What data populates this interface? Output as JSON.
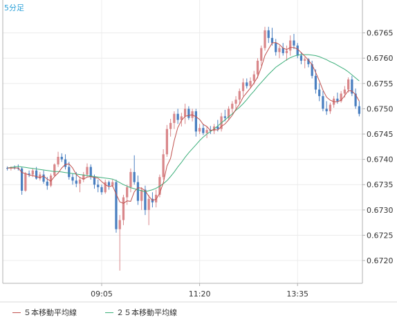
{
  "period_label": "5分足",
  "legend": {
    "ma5_label": "５本移動平均線",
    "ma25_label": "２５本移動平均線"
  },
  "colors": {
    "up_candle": "#d9878a",
    "down_candle": "#4a7fc0",
    "ma5": "#c0504d",
    "ma25": "#3aae79",
    "grid": "#ececec",
    "border": "#b0b0b0",
    "label": "#2aa0d8"
  },
  "chart_data": {
    "type": "candlestick",
    "ylim": [
      0.67155,
      0.67715
    ],
    "y_ticks": [
      "0.6720",
      "0.6725",
      "0.6730",
      "0.6735",
      "0.6740",
      "0.6745",
      "0.6750",
      "0.6755",
      "0.6760",
      "0.6765"
    ],
    "x_ticks": [
      {
        "label": "09:05",
        "index": 26
      },
      {
        "label": "11:20",
        "index": 53
      },
      {
        "label": "13:35",
        "index": 80
      }
    ],
    "candles": [
      [
        0.67383,
        0.67386,
        0.67378,
        0.67382
      ],
      [
        0.67382,
        0.67386,
        0.67378,
        0.67384
      ],
      [
        0.67384,
        0.67388,
        0.6738,
        0.67383
      ],
      [
        0.67383,
        0.6739,
        0.67378,
        0.67382
      ],
      [
        0.67382,
        0.67385,
        0.6733,
        0.67338
      ],
      [
        0.67338,
        0.67375,
        0.67336,
        0.67372
      ],
      [
        0.67372,
        0.67378,
        0.67365,
        0.6737
      ],
      [
        0.6737,
        0.67382,
        0.67365,
        0.67378
      ],
      [
        0.67378,
        0.67385,
        0.6736,
        0.67362
      ],
      [
        0.67362,
        0.67375,
        0.67358,
        0.6737
      ],
      [
        0.6737,
        0.67378,
        0.67352,
        0.67356
      ],
      [
        0.67356,
        0.67365,
        0.6734,
        0.67348
      ],
      [
        0.67348,
        0.67372,
        0.67345,
        0.67368
      ],
      [
        0.67368,
        0.67392,
        0.67365,
        0.6739
      ],
      [
        0.6739,
        0.67415,
        0.67385,
        0.67405
      ],
      [
        0.67405,
        0.67412,
        0.67395,
        0.674
      ],
      [
        0.674,
        0.6741,
        0.6738,
        0.67385
      ],
      [
        0.67385,
        0.67395,
        0.6736,
        0.67365
      ],
      [
        0.67365,
        0.67372,
        0.6735,
        0.67358
      ],
      [
        0.67358,
        0.67375,
        0.67345,
        0.67352
      ],
      [
        0.67352,
        0.67365,
        0.67335,
        0.6736
      ],
      [
        0.6736,
        0.67375,
        0.67355,
        0.6737
      ],
      [
        0.6737,
        0.67392,
        0.67365,
        0.67385
      ],
      [
        0.67385,
        0.6739,
        0.6736,
        0.67365
      ],
      [
        0.67365,
        0.6737,
        0.67342,
        0.6735
      ],
      [
        0.6735,
        0.6736,
        0.67335,
        0.67345
      ],
      [
        0.67345,
        0.6735,
        0.6733,
        0.67335
      ],
      [
        0.67335,
        0.6736,
        0.67332,
        0.67355
      ],
      [
        0.67355,
        0.67358,
        0.6734,
        0.67348
      ],
      [
        0.67348,
        0.6736,
        0.67345,
        0.67355
      ],
      [
        0.67355,
        0.6736,
        0.67255,
        0.67262
      ],
      [
        0.67262,
        0.6729,
        0.6718,
        0.6728
      ],
      [
        0.6728,
        0.6733,
        0.6727,
        0.67325
      ],
      [
        0.67325,
        0.6735,
        0.6731,
        0.67345
      ],
      [
        0.67345,
        0.67382,
        0.67335,
        0.67375
      ],
      [
        0.67375,
        0.67408,
        0.6735,
        0.67355
      ],
      [
        0.67355,
        0.67368,
        0.6731,
        0.67318
      ],
      [
        0.67318,
        0.67345,
        0.673,
        0.6734
      ],
      [
        0.6734,
        0.67348,
        0.6729,
        0.673
      ],
      [
        0.673,
        0.6733,
        0.6727,
        0.67322
      ],
      [
        0.67322,
        0.67335,
        0.67305,
        0.67315
      ],
      [
        0.67315,
        0.6734,
        0.67305,
        0.6733
      ],
      [
        0.6733,
        0.6737,
        0.67325,
        0.67365
      ],
      [
        0.67365,
        0.6742,
        0.6736,
        0.6741
      ],
      [
        0.6741,
        0.67468,
        0.67405,
        0.6746
      ],
      [
        0.6746,
        0.6748,
        0.67445,
        0.67472
      ],
      [
        0.67472,
        0.67495,
        0.6746,
        0.6749
      ],
      [
        0.6749,
        0.675,
        0.6747,
        0.67478
      ],
      [
        0.67478,
        0.67492,
        0.67465,
        0.67485
      ],
      [
        0.67485,
        0.6751,
        0.6747,
        0.675
      ],
      [
        0.675,
        0.67505,
        0.67478,
        0.67482
      ],
      [
        0.67482,
        0.675,
        0.67475,
        0.67495
      ],
      [
        0.67495,
        0.675,
        0.67445,
        0.67455
      ],
      [
        0.67455,
        0.6747,
        0.6745,
        0.67462
      ],
      [
        0.67462,
        0.6747,
        0.67448,
        0.67452
      ],
      [
        0.67452,
        0.67465,
        0.67442,
        0.67458
      ],
      [
        0.67458,
        0.67466,
        0.6745,
        0.67456
      ],
      [
        0.67456,
        0.6747,
        0.6745,
        0.67465
      ],
      [
        0.67465,
        0.67478,
        0.67455,
        0.6746
      ],
      [
        0.6746,
        0.67492,
        0.67455,
        0.67485
      ],
      [
        0.67485,
        0.67498,
        0.67475,
        0.67482
      ],
      [
        0.67482,
        0.67505,
        0.67478,
        0.675
      ],
      [
        0.675,
        0.67515,
        0.67492,
        0.6751
      ],
      [
        0.6751,
        0.67525,
        0.675,
        0.67518
      ],
      [
        0.67518,
        0.6754,
        0.6751,
        0.67535
      ],
      [
        0.67535,
        0.6756,
        0.67525,
        0.67552
      ],
      [
        0.67552,
        0.6756,
        0.6754,
        0.67545
      ],
      [
        0.67545,
        0.67562,
        0.6754,
        0.67555
      ],
      [
        0.67555,
        0.67575,
        0.67548,
        0.67568
      ],
      [
        0.67568,
        0.676,
        0.6756,
        0.67595
      ],
      [
        0.67595,
        0.67625,
        0.67585,
        0.6762
      ],
      [
        0.6762,
        0.67662,
        0.67615,
        0.67655
      ],
      [
        0.67655,
        0.67662,
        0.6763,
        0.6764
      ],
      [
        0.6764,
        0.6766,
        0.67625,
        0.6763
      ],
      [
        0.6763,
        0.67638,
        0.67605,
        0.67612
      ],
      [
        0.67612,
        0.67625,
        0.676,
        0.6762
      ],
      [
        0.6762,
        0.6763,
        0.67605,
        0.6761
      ],
      [
        0.6761,
        0.67625,
        0.67595,
        0.67615
      ],
      [
        0.67615,
        0.67645,
        0.67605,
        0.67635
      ],
      [
        0.67635,
        0.67648,
        0.67618,
        0.67625
      ],
      [
        0.67625,
        0.6763,
        0.676,
        0.67605
      ],
      [
        0.67605,
        0.67612,
        0.67588,
        0.67595
      ],
      [
        0.67595,
        0.67602,
        0.6758,
        0.67598
      ],
      [
        0.67598,
        0.676,
        0.67582,
        0.67588
      ],
      [
        0.67588,
        0.67595,
        0.6756,
        0.67565
      ],
      [
        0.67565,
        0.67578,
        0.6753,
        0.67538
      ],
      [
        0.67538,
        0.6755,
        0.67515,
        0.67525
      ],
      [
        0.67525,
        0.67535,
        0.67495,
        0.675
      ],
      [
        0.675,
        0.67515,
        0.67488,
        0.67495
      ],
      [
        0.67495,
        0.67512,
        0.6749,
        0.67508
      ],
      [
        0.67508,
        0.67525,
        0.67502,
        0.6752
      ],
      [
        0.6752,
        0.67532,
        0.6751,
        0.67515
      ],
      [
        0.67515,
        0.67535,
        0.67512,
        0.6753
      ],
      [
        0.6753,
        0.67545,
        0.67522,
        0.67538
      ],
      [
        0.67538,
        0.67562,
        0.67532,
        0.67558
      ],
      [
        0.67558,
        0.67565,
        0.67525,
        0.6753
      ],
      [
        0.6753,
        0.6754,
        0.675,
        0.67505
      ],
      [
        0.67505,
        0.67515,
        0.67485,
        0.6749
      ]
    ],
    "ma5": [
      0.67383,
      0.67383,
      0.67383,
      0.67383,
      0.67374,
      0.67372,
      0.67369,
      0.67368,
      0.67366,
      0.67364,
      0.67367,
      0.67361,
      0.67357,
      0.67366,
      0.67373,
      0.67383,
      0.6739,
      0.67391,
      0.67383,
      0.6737,
      0.67364,
      0.67361,
      0.67365,
      0.67366,
      0.67364,
      0.67363,
      0.67356,
      0.6735,
      0.67346,
      0.67348,
      0.67331,
      0.67316,
      0.67313,
      0.67318,
      0.67317,
      0.67336,
      0.67344,
      0.67343,
      0.67338,
      0.67327,
      0.67319,
      0.67321,
      0.67333,
      0.67354,
      0.67387,
      0.67402,
      0.67437,
      0.67463,
      0.67477,
      0.67485,
      0.67487,
      0.67488,
      0.67484,
      0.67479,
      0.67469,
      0.67465,
      0.67457,
      0.67459,
      0.67458,
      0.67465,
      0.6747,
      0.67478,
      0.67487,
      0.67499,
      0.67509,
      0.67523,
      0.67532,
      0.67541,
      0.67551,
      0.67563,
      0.67582,
      0.67605,
      0.67618,
      0.6763,
      0.67631,
      0.67627,
      0.6762,
      0.67617,
      0.67621,
      0.67621,
      0.67618,
      0.67611,
      0.67604,
      0.67596,
      0.67587,
      0.67572,
      0.67555,
      0.67537,
      0.67523,
      0.67517,
      0.67514,
      0.67514,
      0.67517,
      0.67526,
      0.67536,
      0.67535,
      0.67528,
      0.67515
    ],
    "ma25": [
      0.67383,
      0.67384,
      0.67385,
      0.67386,
      0.67385,
      0.67384,
      0.67383,
      0.67382,
      0.67381,
      0.6738,
      0.67379,
      0.67378,
      0.67377,
      0.67376,
      0.67376,
      0.67375,
      0.67374,
      0.67373,
      0.67372,
      0.67371,
      0.6737,
      0.67369,
      0.67368,
      0.67367,
      0.67366,
      0.67365,
      0.67364,
      0.67363,
      0.67362,
      0.67361,
      0.67358,
      0.67354,
      0.6735,
      0.67347,
      0.67344,
      0.67342,
      0.6734,
      0.67338,
      0.67336,
      0.67338,
      0.6734,
      0.67343,
      0.67347,
      0.67352,
      0.67358,
      0.67366,
      0.67375,
      0.67385,
      0.67394,
      0.67404,
      0.67413,
      0.67421,
      0.67429,
      0.67437,
      0.67444,
      0.6745,
      0.67455,
      0.6746,
      0.67466,
      0.67472,
      0.67478,
      0.67484,
      0.6749,
      0.67497,
      0.67503,
      0.6751,
      0.67518,
      0.67527,
      0.67535,
      0.67544,
      0.67552,
      0.6756,
      0.67568,
      0.67575,
      0.67582,
      0.67587,
      0.67592,
      0.67597,
      0.67601,
      0.67604,
      0.67606,
      0.67607,
      0.67607,
      0.67607,
      0.67606,
      0.67605,
      0.67603,
      0.676,
      0.67597,
      0.67593,
      0.6759,
      0.67586,
      0.67582,
      0.67578,
      0.67573,
      0.67567,
      0.67561,
      0.67555
    ]
  }
}
